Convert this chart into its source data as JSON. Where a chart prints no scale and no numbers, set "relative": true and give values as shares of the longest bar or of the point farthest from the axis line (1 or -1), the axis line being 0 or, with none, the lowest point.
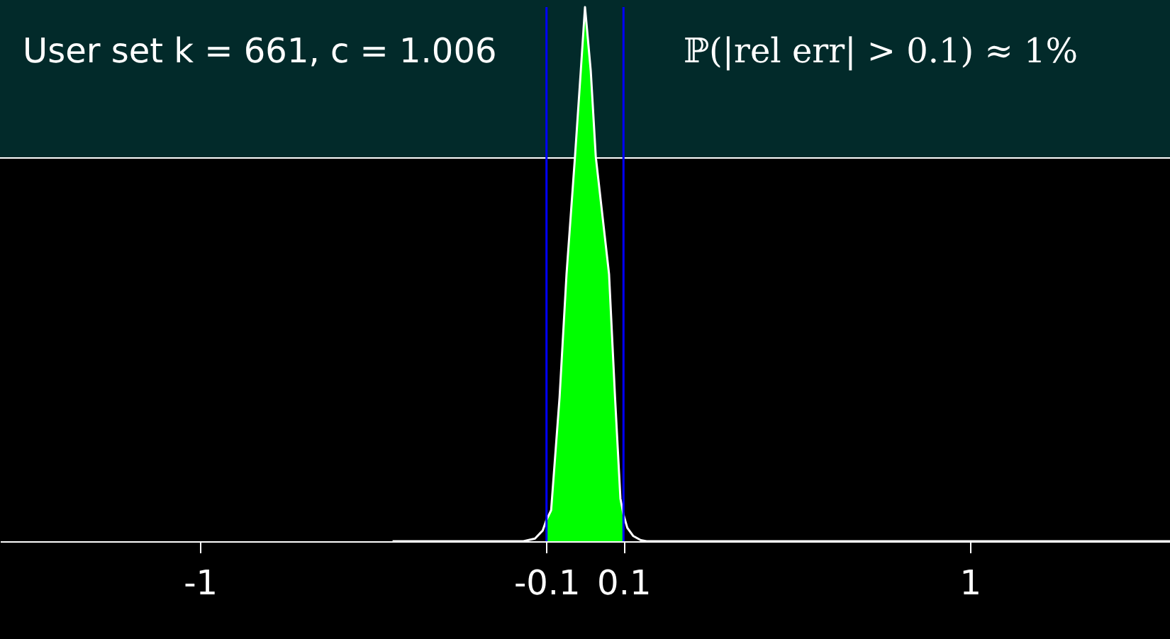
{
  "chart_data": {
    "type": "line",
    "title": "User set k = 661, c = 1.006",
    "annotations": [
      "ℙ(|rel err| > 0.1) ≈ 1%"
    ],
    "relative": true,
    "xlim": [
      -1.52,
      1.52
    ],
    "xticks": [
      {
        "value": -1,
        "label": "-1"
      },
      {
        "value": -0.1,
        "label": "-0.1"
      },
      {
        "value": 0.1,
        "label": "0.1"
      },
      {
        "value": 1,
        "label": "1"
      }
    ],
    "grid": false,
    "series": [
      {
        "type": "area",
        "color": "#00ff00",
        "x": [
          -0.1,
          -0.088,
          -0.066,
          -0.048,
          -0.026,
          -0.011,
          0.0,
          0.015,
          0.028,
          0.0625,
          0.078,
          0.092,
          0.1
        ],
        "values": [
          0.04,
          0.058,
          0.27,
          0.5,
          0.72,
          0.88,
          1,
          0.88,
          0.72,
          0.5,
          0.27,
          0.08,
          0.05
        ]
      },
      {
        "type": "line",
        "color": "#ffffff",
        "x": [
          -0.5,
          -0.16,
          -0.13,
          -0.11,
          -0.1,
          -0.088,
          -0.066,
          -0.048,
          -0.026,
          -0.011,
          0.0,
          0.015,
          0.028,
          0.0625,
          0.078,
          0.092,
          0.1,
          0.11,
          0.125,
          0.145,
          0.16,
          1.52
        ],
        "values": [
          0,
          0,
          0.005,
          0.02,
          0.04,
          0.058,
          0.27,
          0.5,
          0.72,
          0.88,
          1,
          0.88,
          0.72,
          0.5,
          0.27,
          0.08,
          0.05,
          0.025,
          0.01,
          0.002,
          0,
          0
        ]
      }
    ],
    "ref_lines": [
      {
        "axis": "x",
        "value": -0.1,
        "color": "#0000ff"
      },
      {
        "axis": "x",
        "value": 0.1,
        "color": "#0000ff"
      }
    ]
  }
}
